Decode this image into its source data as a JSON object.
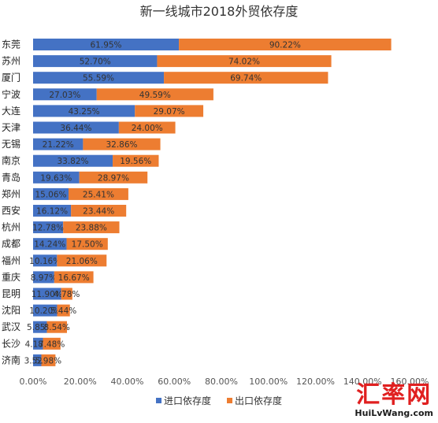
{
  "chart_data": {
    "type": "bar",
    "orientation": "horizontal",
    "stacked": true,
    "title": "新一线城市2018外贸依存度",
    "categories": [
      "东莞",
      "苏州",
      "厦门",
      "宁波",
      "大连",
      "天津",
      "无锡",
      "南京",
      "青岛",
      "郑州",
      "西安",
      "杭州",
      "成都",
      "福州",
      "重庆",
      "昆明",
      "沈阳",
      "武汉",
      "长沙",
      "济南"
    ],
    "series": [
      {
        "name": "进口依存度",
        "color": "#4472C4",
        "values": [
          61.95,
          52.7,
          55.59,
          27.03,
          43.25,
          36.44,
          21.22,
          33.82,
          19.63,
          15.06,
          16.12,
          12.78,
          14.24,
          10.16,
          8.97,
          11.9,
          10.2,
          5.85,
          4.18,
          3.52
        ],
        "labels": [
          "61.95%",
          "52.70%",
          "55.59%",
          "27.03%",
          "43.25%",
          "36.44%",
          "21.22%",
          "33.82%",
          "19.63%",
          "15.06%",
          "16.12%",
          "12.78%",
          "14.24%",
          "10.16%",
          "8.97%",
          "11.90%",
          "10.20%",
          "5.85%",
          "4.18%",
          "3.52%"
        ]
      },
      {
        "name": "出口依存度",
        "color": "#ED7D31",
        "values": [
          90.22,
          74.02,
          69.74,
          49.59,
          29.07,
          24.0,
          32.86,
          19.56,
          28.97,
          25.41,
          23.44,
          23.88,
          17.5,
          21.06,
          16.67,
          4.78,
          5.44,
          8.54,
          7.48,
          5.98
        ],
        "labels": [
          "90.22%",
          "74.02%",
          "69.74%",
          "49.59%",
          "29.07%",
          "24.00%",
          "32.86%",
          "19.56%",
          "28.97%",
          "25.41%",
          "23.44%",
          "23.88%",
          "17.50%",
          "21.06%",
          "16.67%",
          "4.78%",
          "5.44%",
          "8.54%",
          "7.48%",
          "5.98%"
        ]
      }
    ],
    "xlim": [
      0,
      160
    ],
    "xticks": [
      "0.00%",
      "20.00%",
      "40.00%",
      "60.00%",
      "80.00%",
      "100.00%",
      "120.00%",
      "140.00%",
      "160.00%"
    ],
    "legend_position": "bottom",
    "grid": false
  },
  "watermark": {
    "logo": "汇率网",
    "url": "HuiLvWang.com"
  }
}
